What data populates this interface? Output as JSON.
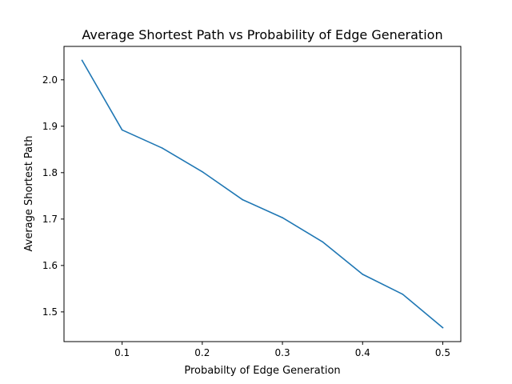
{
  "chart_data": {
    "type": "line",
    "title": "Average Shortest Path vs Probability of Edge Generation",
    "xlabel": "Probabilty of Edge Generation",
    "ylabel": "Average Shortest Path",
    "xlim": [
      0.0275,
      0.5225
    ],
    "ylim": [
      1.436,
      2.072
    ],
    "xticks": [
      0.1,
      0.2,
      0.3,
      0.4,
      0.5
    ],
    "xtick_labels": [
      "0.1",
      "0.2",
      "0.3",
      "0.4",
      "0.5"
    ],
    "yticks": [
      1.5,
      1.6,
      1.7,
      1.8,
      1.9,
      2.0
    ],
    "ytick_labels": [
      "1.5",
      "1.6",
      "1.7",
      "1.8",
      "1.9",
      "2.0"
    ],
    "grid": false,
    "series": [
      {
        "color": "#1f77b4",
        "x": [
          0.05,
          0.1,
          0.15,
          0.2,
          0.25,
          0.3,
          0.35,
          0.4,
          0.45,
          0.5
        ],
        "y": [
          2.042,
          1.892,
          1.853,
          1.802,
          1.742,
          1.703,
          1.651,
          1.581,
          1.538,
          1.466
        ]
      }
    ]
  }
}
